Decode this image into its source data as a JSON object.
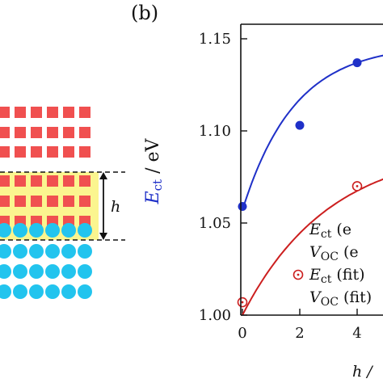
{
  "panel_label": "(b)",
  "structure": {
    "height_symbol": "h",
    "colors": {
      "acceptor": "#f05050",
      "donor": "#22c4ee",
      "interface_highlight": "#fbf58f"
    }
  },
  "chart_data": {
    "type": "scatter",
    "x_label_visible": "h /",
    "y_label": {
      "symbol": "E",
      "subscript": "ct",
      "unit": " / eV"
    },
    "xlim": [
      -0.1,
      6.5
    ],
    "ylim": [
      1.0,
      1.16
    ],
    "x_ticks": [
      0,
      2,
      4
    ],
    "x_tick_labels": [
      "0",
      "2",
      "4"
    ],
    "y_ticks": [
      1.0,
      1.05,
      1.1,
      1.15
    ],
    "y_tick_labels": [
      "1.00",
      "1.05",
      "1.10",
      "1.15"
    ],
    "grid": false,
    "series": [
      {
        "key": "ect_points",
        "style": "filled",
        "color": "#1f30c8",
        "x": [
          0,
          2,
          4
        ],
        "y": [
          1.059,
          1.103,
          1.137
        ]
      },
      {
        "key": "voc_points",
        "style": "open",
        "color": "#cc1f1f",
        "x": [
          0,
          4
        ],
        "y": [
          1.007,
          1.07
        ]
      }
    ],
    "fits": [
      {
        "key": "ect_fit",
        "color": "#1f30c8",
        "a": 1.147,
        "b": 0.09,
        "k": 0.55
      },
      {
        "key": "voc_fit",
        "color": "#cc1f1f",
        "a": 1.092,
        "b": 0.092,
        "k": 0.33
      }
    ],
    "legend": [
      {
        "symbol": "E",
        "subscript": "ct",
        "suffix": " (e",
        "marker": "none"
      },
      {
        "symbol": "V",
        "subscript": "OC",
        "suffix": " (e",
        "marker": "none"
      },
      {
        "symbol": "E",
        "subscript": "ct",
        "suffix": " (fit)",
        "marker": "open"
      },
      {
        "symbol": "V",
        "subscript": "OC",
        "suffix": " (fit)",
        "marker": "none"
      }
    ],
    "legend_position": "bottom-right"
  }
}
